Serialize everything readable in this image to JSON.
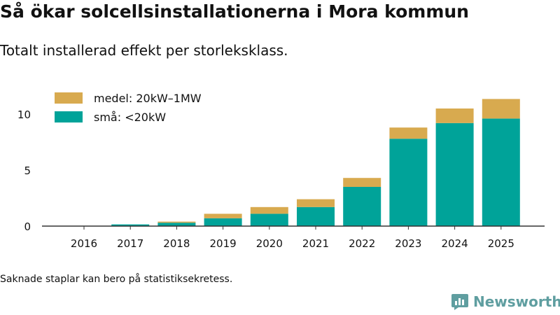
{
  "header": {
    "title": "Så ökar solcellsinstallationerna i Mora kommun",
    "subtitle": "Totalt installerad effekt per storleksklass."
  },
  "footnote": "Saknade staplar kan bero på statistiksekretess.",
  "brand": {
    "name": "Newsworthy",
    "icon": "newsworthy-logo-icon",
    "color": "#5f9ea0"
  },
  "colors": {
    "small": "#00a399",
    "medium": "#d8aa4f",
    "axis": "#333333"
  },
  "chart_data": {
    "type": "bar",
    "stacked": true,
    "title": "Så ökar solcellsinstallationerna i Mora kommun",
    "subtitle": "Totalt installerad effekt per storleksklass.",
    "xlabel": "",
    "ylabel": "",
    "ylim": [
      0,
      12
    ],
    "yticks": [
      0,
      5,
      10
    ],
    "grid": false,
    "legend_position": "top-left",
    "categories": [
      "2016",
      "2017",
      "2018",
      "2019",
      "2020",
      "2021",
      "2022",
      "2023",
      "2024",
      "2025"
    ],
    "series": [
      {
        "name": "små: <20kW",
        "color": "#00a399",
        "values": [
          0.0,
          0.15,
          0.3,
          0.7,
          1.1,
          1.7,
          3.5,
          7.8,
          9.2,
          9.6
        ]
      },
      {
        "name": "medel: 20kW–1MW",
        "color": "#d8aa4f",
        "values": [
          0.0,
          0.0,
          0.1,
          0.4,
          0.6,
          0.7,
          0.8,
          1.0,
          1.3,
          1.75
        ]
      }
    ]
  }
}
